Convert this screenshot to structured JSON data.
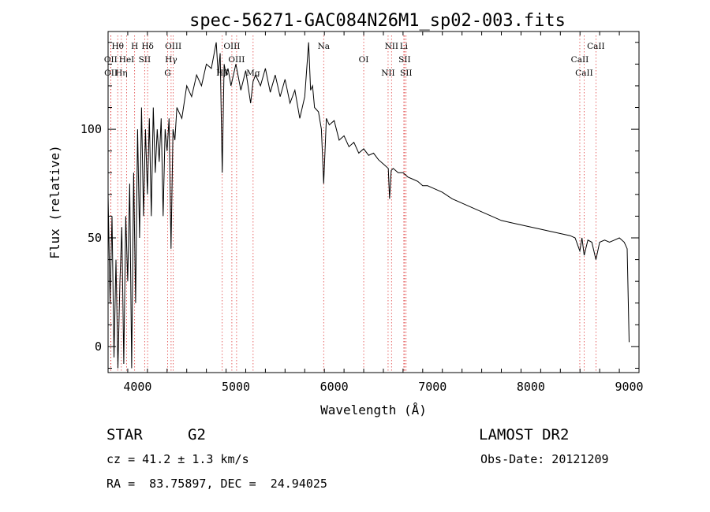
{
  "chart_data": {
    "type": "line",
    "title": "spec-56271-GAC084N26M1_sp02-003.fits",
    "xlabel": "Wavelength (Å)",
    "ylabel": "Flux (relative)",
    "xlim": [
      3700,
      9100
    ],
    "ylim": [
      -12,
      145
    ],
    "xticks": [
      4000,
      5000,
      6000,
      7000,
      8000,
      9000
    ],
    "yticks": [
      0,
      50,
      100
    ],
    "grid": false,
    "series": [
      {
        "x": [
          3700,
          3720,
          3740,
          3760,
          3780,
          3800,
          3820,
          3840,
          3860,
          3880,
          3900,
          3920,
          3940,
          3960,
          3980,
          4000,
          4020,
          4040,
          4060,
          4080,
          4100,
          4120,
          4140,
          4160,
          4180,
          4200,
          4220,
          4240,
          4260,
          4280,
          4300,
          4320,
          4340,
          4360,
          4380,
          4400,
          4450,
          4500,
          4550,
          4600,
          4650,
          4700,
          4750,
          4800,
          4820,
          4840,
          4861,
          4880,
          4900,
          4920,
          4950,
          5000,
          5050,
          5100,
          5150,
          5175,
          5200,
          5250,
          5300,
          5350,
          5400,
          5450,
          5500,
          5550,
          5600,
          5650,
          5700,
          5740,
          5760,
          5780,
          5800,
          5840,
          5870,
          5893,
          5920,
          5950,
          6000,
          6050,
          6100,
          6150,
          6200,
          6250,
          6300,
          6350,
          6400,
          6450,
          6500,
          6550,
          6563,
          6580,
          6600,
          6650,
          6700,
          6750,
          6800,
          6850,
          6900,
          6950,
          7000,
          7100,
          7200,
          7300,
          7400,
          7500,
          7600,
          7700,
          7800,
          7900,
          8000,
          8100,
          8200,
          8300,
          8400,
          8450,
          8498,
          8520,
          8542,
          8580,
          8620,
          8662,
          8700,
          8750,
          8800,
          8850,
          8900,
          8950,
          8980,
          9000
        ],
        "values": [
          70,
          20,
          60,
          -5,
          40,
          -10,
          30,
          55,
          -8,
          60,
          30,
          75,
          -10,
          80,
          20,
          100,
          50,
          110,
          60,
          100,
          70,
          105,
          60,
          110,
          80,
          100,
          85,
          105,
          60,
          100,
          90,
          105,
          45,
          100,
          95,
          110,
          105,
          120,
          115,
          125,
          120,
          130,
          128,
          140,
          125,
          135,
          80,
          130,
          125,
          128,
          120,
          130,
          118,
          127,
          112,
          122,
          125,
          120,
          128,
          117,
          125,
          115,
          123,
          112,
          118,
          105,
          115,
          140,
          118,
          120,
          110,
          108,
          100,
          75,
          105,
          102,
          104,
          95,
          97,
          92,
          94,
          89,
          91,
          88,
          89,
          86,
          84,
          82,
          68,
          81,
          82,
          80,
          80,
          78,
          77,
          76,
          74,
          74,
          73,
          71,
          68,
          66,
          64,
          62,
          60,
          58,
          57,
          56,
          55,
          54,
          53,
          52,
          51,
          50,
          44,
          50,
          42,
          49,
          48,
          40,
          48,
          49,
          48,
          49,
          50,
          48,
          45,
          2
        ]
      }
    ],
    "lines": [
      {
        "name": "Hθ",
        "x": 3798
      },
      {
        "name": "OII",
        "x": 3727
      },
      {
        "name": "OII",
        "x": 3729
      },
      {
        "name": "H",
        "x": 3970
      },
      {
        "name": "HeI",
        "x": 3889
      },
      {
        "name": "Hη",
        "x": 3835
      },
      {
        "name": "Hδ",
        "x": 4102
      },
      {
        "name": "SII",
        "x": 4072
      },
      {
        "name": "G",
        "x": 4305
      },
      {
        "name": "OIII",
        "x": 4363
      },
      {
        "name": "Hγ",
        "x": 4341
      },
      {
        "name": "Hβ",
        "x": 4861
      },
      {
        "name": "OIII",
        "x": 4959
      },
      {
        "name": "OIII",
        "x": 5007
      },
      {
        "name": "Mg",
        "x": 5175
      },
      {
        "name": "Na",
        "x": 5893
      },
      {
        "name": "OI",
        "x": 6300
      },
      {
        "name": "NII",
        "x": 6548
      },
      {
        "name": "NII",
        "x": 6583
      },
      {
        "name": "SII",
        "x": 6716
      },
      {
        "name": "SII",
        "x": 6731
      },
      {
        "name": "Li",
        "x": 6708
      },
      {
        "name": "CaII",
        "x": 8498
      },
      {
        "name": "CaII",
        "x": 8542
      },
      {
        "name": "CaII",
        "x": 8662
      }
    ]
  },
  "info": {
    "class_label": "STAR",
    "subclass": "G2",
    "survey": "LAMOST DR2",
    "cz": "cz = 41.2 ± 1.3 km/s",
    "obs_date": "Obs-Date: 20121209",
    "coords": "RA =  83.75897, DEC =  24.94025"
  }
}
